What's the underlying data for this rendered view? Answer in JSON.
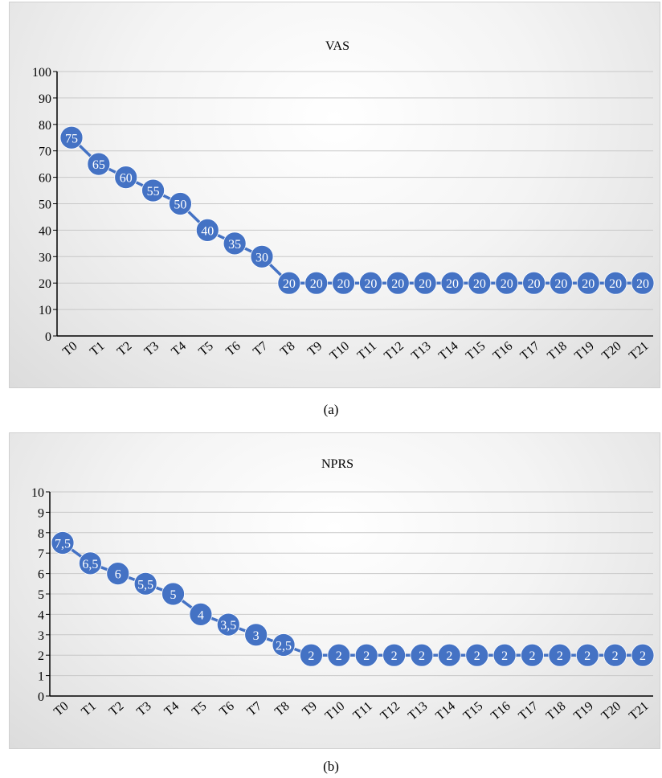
{
  "figure": {
    "caption_a": "(a)",
    "caption_b": "(b)",
    "line_color": "#4472c4",
    "marker_color": "#4472c4",
    "label_color": "#ffffff"
  },
  "chart_data": [
    {
      "type": "line",
      "title": "VAS",
      "categories": [
        "T0",
        "T1",
        "T2",
        "T3",
        "T4",
        "T5",
        "T6",
        "T7",
        "T8",
        "T9",
        "T10",
        "T11",
        "T12",
        "T13",
        "T14",
        "T15",
        "T16",
        "T17",
        "T18",
        "T19",
        "T20",
        "T21"
      ],
      "series": [
        {
          "values": [
            75,
            65,
            60,
            55,
            50,
            40,
            35,
            30,
            20,
            20,
            20,
            20,
            20,
            20,
            20,
            20,
            20,
            20,
            20,
            20,
            20,
            20
          ]
        }
      ],
      "data_labels": [
        "75",
        "65",
        "60",
        "55",
        "50",
        "40",
        "35",
        "30",
        "20",
        "20",
        "20",
        "20",
        "20",
        "20",
        "20",
        "20",
        "20",
        "20",
        "20",
        "20",
        "20",
        "20"
      ],
      "y_ticks": [
        "0",
        "10",
        "20",
        "30",
        "40",
        "50",
        "60",
        "70",
        "80",
        "90",
        "100"
      ],
      "ylim": [
        0,
        100
      ],
      "grid": true,
      "legend": false
    },
    {
      "type": "line",
      "title": "NPRS",
      "categories": [
        "T0",
        "T1",
        "T2",
        "T3",
        "T4",
        "T5",
        "T6",
        "T7",
        "T8",
        "T9",
        "T10",
        "T11",
        "T12",
        "T13",
        "T14",
        "T15",
        "T16",
        "T17",
        "T18",
        "T19",
        "T20",
        "T21"
      ],
      "series": [
        {
          "values": [
            7.5,
            6.5,
            6,
            5.5,
            5,
            4,
            3.5,
            3,
            2.5,
            2,
            2,
            2,
            2,
            2,
            2,
            2,
            2,
            2,
            2,
            2,
            2,
            2
          ]
        }
      ],
      "data_labels": [
        "7,5",
        "6,5",
        "6",
        "5,5",
        "5",
        "4",
        "3,5",
        "3",
        "2,5",
        "2",
        "2",
        "2",
        "2",
        "2",
        "2",
        "2",
        "2",
        "2",
        "2",
        "2",
        "2",
        "2"
      ],
      "y_ticks": [
        "0",
        "1",
        "2",
        "3",
        "4",
        "5",
        "6",
        "7",
        "8",
        "9",
        "10"
      ],
      "ylim": [
        0,
        10
      ],
      "grid": true,
      "legend": false
    }
  ]
}
